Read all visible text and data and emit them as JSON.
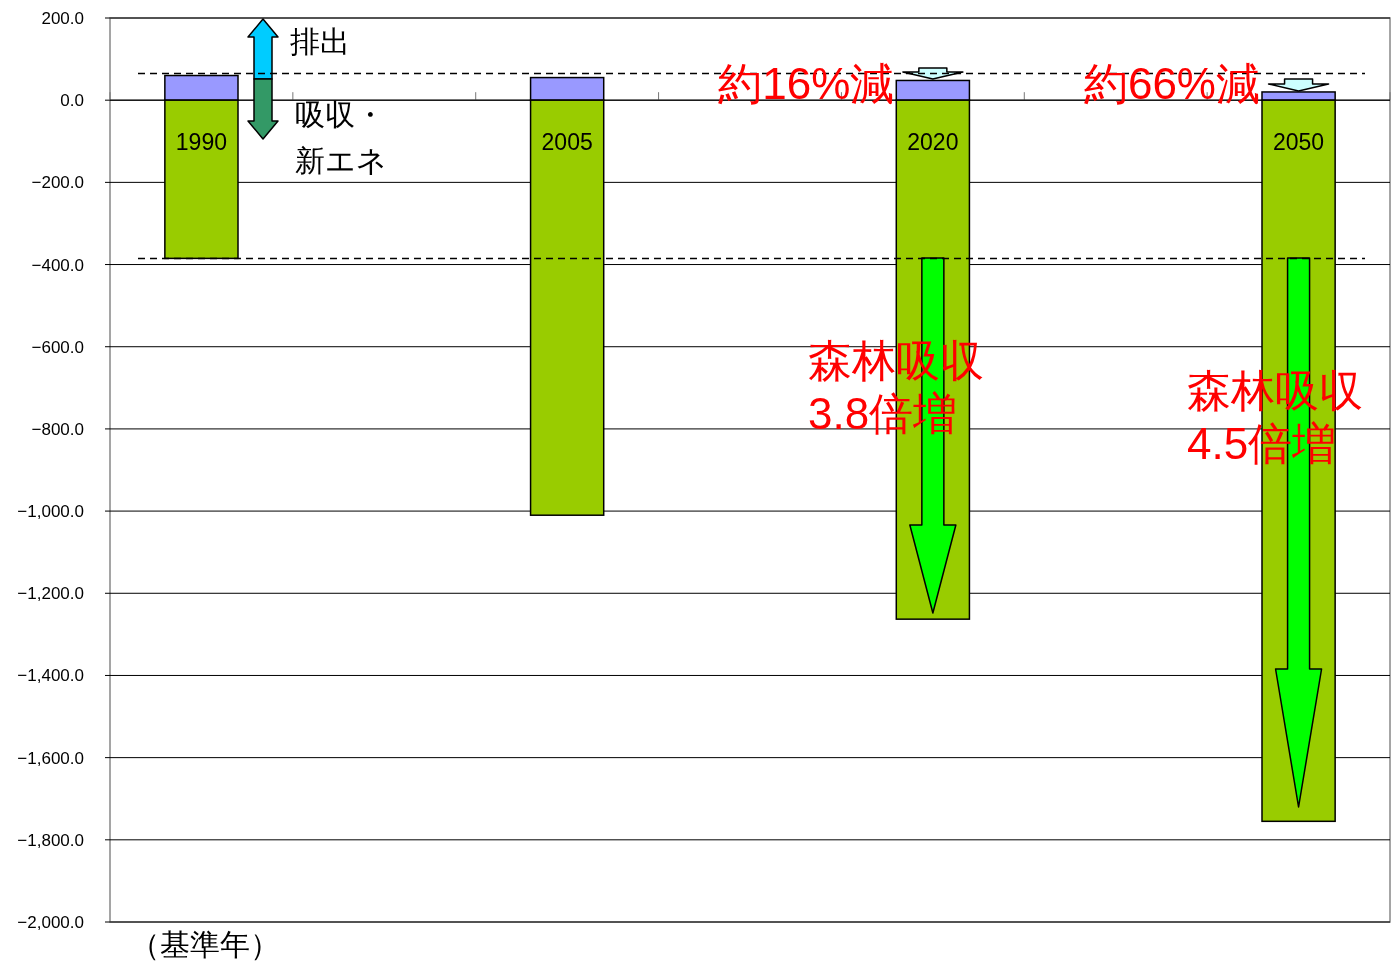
{
  "chart_data": {
    "type": "bar",
    "stacked": true,
    "categories": [
      "1990",
      null,
      "2005",
      null,
      "2020",
      null,
      "2050"
    ],
    "series": [
      {
        "color": "#9999ff",
        "values": [
          60,
          null,
          55,
          null,
          48,
          null,
          20
        ]
      },
      {
        "color": "#99cc00",
        "values": [
          -385,
          null,
          -1010,
          null,
          -1263,
          null,
          -1755
        ]
      }
    ],
    "ylim": [
      -2000,
      200
    ],
    "yticks": [
      {
        "value": 200,
        "label": "200.0"
      },
      {
        "value": 0,
        "label": "0.0"
      },
      {
        "value": -200,
        "label": "−200.0"
      },
      {
        "value": -400,
        "label": "−400.0"
      },
      {
        "value": -600,
        "label": "−600.0"
      },
      {
        "value": -800,
        "label": "−800.0"
      },
      {
        "value": -1000,
        "label": "−1,000.0"
      },
      {
        "value": -1200,
        "label": "−1,200.0"
      },
      {
        "value": -1400,
        "label": "−1,400.0"
      },
      {
        "value": -1600,
        "label": "−1,600.0"
      },
      {
        "value": -1800,
        "label": "−1,800.0"
      },
      {
        "value": -2000,
        "label": "−2,000.0"
      }
    ],
    "grid": "y",
    "ref_lines": [
      {
        "axis": "y",
        "value": 65,
        "line_style": "dashed",
        "color": "#000000"
      },
      {
        "axis": "y",
        "value": -385,
        "line_style": "dashed",
        "color": "#000000"
      }
    ],
    "annotations": [
      "（基準年）",
      "排出",
      "吸収・",
      "新エネ",
      {
        "text": "約16%減",
        "x": "2020",
        "y": 65
      },
      {
        "text": "約66%減",
        "x": "2050",
        "y": 65
      },
      "森林吸収\n3.8倍増",
      "森林吸収\n4.5倍増"
    ]
  }
}
